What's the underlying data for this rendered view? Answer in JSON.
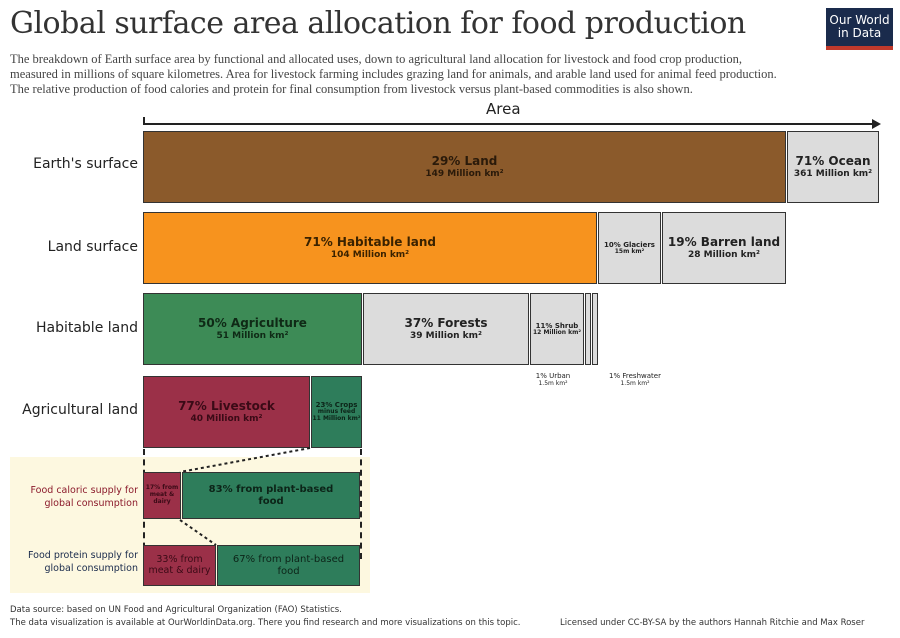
{
  "title": "Global surface area allocation for food production",
  "logo": [
    "Our World",
    "in Data"
  ],
  "subtitle": [
    "The breakdown of Earth surface area by functional and allocated uses, down to agricultural land allocation for livestock and food crop production,",
    "measured in millions of square kilometres. Area for livestock farming includes grazing land for animals, and arable land used for animal feed production.",
    "The relative production of food calories and protein for final consumption from livestock versus plant-based commodities is also shown."
  ],
  "axis_label": "Area",
  "rows": {
    "earth": "Earth's surface",
    "land": "Land surface",
    "habitable": "Habitable land",
    "agri": "Agricultural land"
  },
  "colors": {
    "land": "#8b5a2b",
    "habitable": "#f7931e",
    "agriculture": "#3d8b56",
    "livestock": "#9b3048",
    "crops": "#2e7d5b",
    "other": "#dcdcdc"
  },
  "earth": {
    "land": [
      "29% Land",
      "149 Million km²"
    ],
    "ocean": [
      "71% Ocean",
      "361 Million km²"
    ]
  },
  "landsurf": {
    "habitable": [
      "71% Habitable land",
      "104 Million km²"
    ],
    "glaciers": [
      "10% Glaciers",
      "15m km²"
    ],
    "barren": [
      "19% Barren land",
      "28 Million km²"
    ]
  },
  "hab": {
    "agri": [
      "50% Agriculture",
      "51 Million km²"
    ],
    "forests": [
      "37% Forests",
      "39 Million km²"
    ],
    "shrub": [
      "11% Shrub",
      "12 Million km²"
    ],
    "urban": [
      "1% Urban",
      "1.5m km²"
    ],
    "freshwater": [
      "1% Freshwater",
      "1.5m km²"
    ]
  },
  "agri": {
    "livestock": [
      "77% Livestock",
      "40 Million km²"
    ],
    "crops": [
      "23% Crops",
      "minus feed",
      "11 Million km²"
    ]
  },
  "calories": {
    "label": [
      "Food caloric supply for",
      "global consumption"
    ],
    "meat": [
      "17% from",
      "meat & dairy"
    ],
    "plant": [
      "83% from plant-based",
      "food"
    ]
  },
  "protein": {
    "label": [
      "Food protein supply for",
      "global consumption"
    ],
    "meat": [
      "33% from",
      "meat & dairy"
    ],
    "plant": [
      "67% from plant-based",
      "food"
    ]
  },
  "footer": {
    "source": "Data source: based on UN Food and Agricultural Organization (FAO) Statistics.",
    "available": "The data visualization is available at OurWorldinData.org. There you find research and more visualizations on this topic.",
    "license": "Licensed under CC-BY-SA by the authors Hannah Ritchie and Max Roser"
  }
}
